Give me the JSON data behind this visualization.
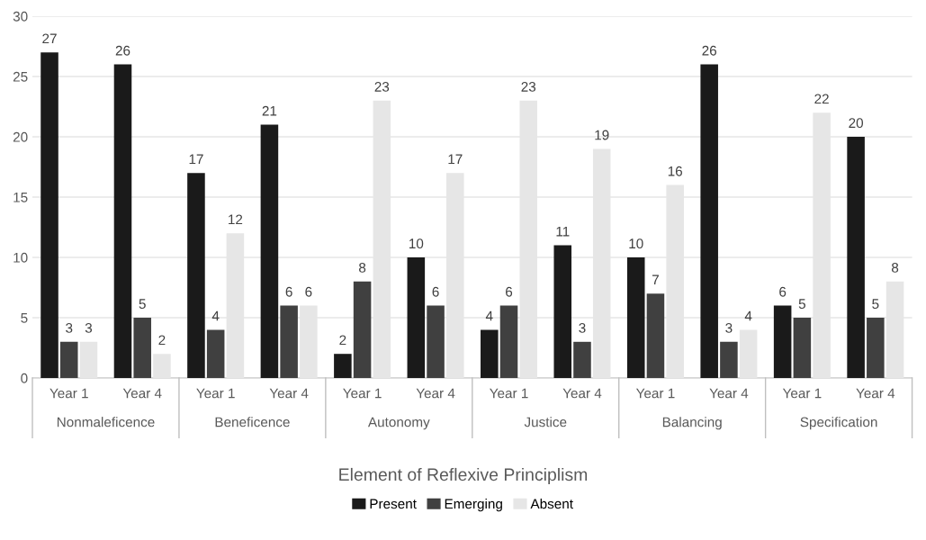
{
  "chart_data": {
    "type": "bar",
    "xlabel": "Element of Reflexive Principlism",
    "categories": [
      "Year 1",
      "Year 4",
      "Year 1",
      "Year 4",
      "Year 1",
      "Year 4",
      "Year 1",
      "Year 4",
      "Year 1",
      "Year 4",
      "Year 1",
      "Year 4"
    ],
    "series": [
      {
        "name": "Present",
        "color": "#1a1a1a",
        "values": [
          27,
          26,
          17,
          21,
          2,
          10,
          4,
          11,
          10,
          26,
          6,
          20
        ]
      },
      {
        "name": "Emerging",
        "color": "#404040",
        "values": [
          3,
          5,
          4,
          6,
          8,
          6,
          6,
          3,
          7,
          3,
          5,
          5
        ]
      },
      {
        "name": "Absent",
        "color": "#e6e6e6",
        "values": [
          3,
          2,
          12,
          6,
          23,
          17,
          23,
          19,
          16,
          4,
          22,
          8
        ]
      }
    ],
    "annotations": [
      "Nonmaleficence",
      "Beneficence",
      "Autonomy",
      "Justice",
      "Balancing",
      "Specification"
    ],
    "ylim": [
      0,
      30
    ],
    "yticks": [
      0,
      5,
      10,
      15,
      20,
      25,
      30
    ],
    "grid": "y",
    "legend": "bottom",
    "data_labels": true
  }
}
